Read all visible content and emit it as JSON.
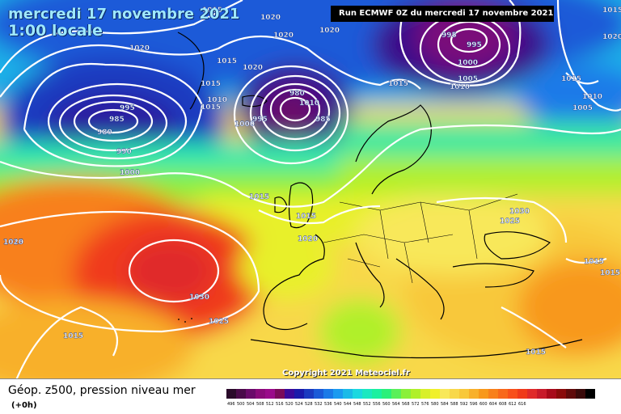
{
  "title": {
    "line1": "mercredi 17 novembre 2021",
    "line2": "1:00 locale"
  },
  "run_label": "Run ECMWF 0Z du mercredi 17 novembre 2021",
  "copyright": "Copyright 2021 Meteociel.fr",
  "legend": {
    "title": "Géop. z500, pression niveau mer",
    "subtitle": "(+0h)",
    "colors": [
      "#2a0a2a",
      "#4a0a4a",
      "#6a0a6a",
      "#8a0a7a",
      "#9a0a8a",
      "#7a0a5a",
      "#3a0a9a",
      "#1a1aaa",
      "#1a3ac0",
      "#1a5ad8",
      "#1a7ae8",
      "#1a9af0",
      "#1abae8",
      "#1ad8e0",
      "#1ae8c0",
      "#1af0a0",
      "#2af07a",
      "#5af05a",
      "#8af03a",
      "#b0f02a",
      "#d8f02a",
      "#f0f02a",
      "#f8e85a",
      "#f8d84a",
      "#f8c83a",
      "#f8b02a",
      "#f8981a",
      "#f8801a",
      "#f8681a",
      "#f8501a",
      "#f03a1a",
      "#e02a2a",
      "#c81a2a",
      "#a80a1a",
      "#8a0a0a",
      "#600a0a",
      "#3a0a0a",
      "#000000"
    ],
    "labels": [
      "496",
      "500",
      "504",
      "508",
      "512",
      "516",
      "520",
      "524",
      "528",
      "532",
      "536",
      "540",
      "544",
      "548",
      "552",
      "556",
      "560",
      "564",
      "568",
      "572",
      "576",
      "580",
      "584",
      "588",
      "592",
      "596",
      "600",
      "604",
      "608",
      "612",
      "616"
    ]
  },
  "isobar_labels": [
    "1015",
    "1020",
    "1020",
    "1020",
    "1015",
    "1020",
    "1020",
    "995",
    "995",
    "1000",
    "1005",
    "1010",
    "1015",
    "1015",
    "1020",
    "1015",
    "1010",
    "1005",
    "1015",
    "1015",
    "1010",
    "995",
    "985",
    "980",
    "990",
    "1000",
    "1015",
    "1015",
    "1020",
    "1030",
    "1025",
    "1015",
    "980",
    "985",
    "1000",
    "995",
    "1010",
    "1015",
    "1030",
    "1025",
    "1015",
    "1015",
    "1020",
    "1015"
  ]
}
